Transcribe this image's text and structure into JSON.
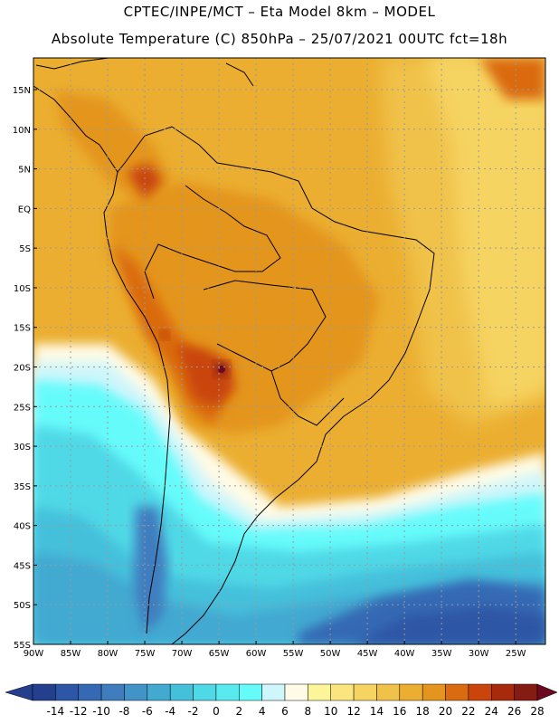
{
  "title": {
    "line1": "CPTEC/INPE/MCT –  Eta Model 8km – MODEL",
    "line2": "Absolute Temperature (C) 850hPa – 25/07/2021 00UTC fct=18h"
  },
  "map": {
    "lat_labels": [
      "15N",
      "10N",
      "5N",
      "EQ",
      "5S",
      "10S",
      "15S",
      "20S",
      "25S",
      "30S",
      "35S",
      "40S",
      "45S",
      "50S",
      "55S"
    ],
    "lon_labels": [
      "90W",
      "85W",
      "80W",
      "75W",
      "70W",
      "65W",
      "60W",
      "55W",
      "50W",
      "45W",
      "40W",
      "35W",
      "30W",
      "25W"
    ],
    "lat_range": [
      -55,
      19
    ],
    "lon_range": [
      -90,
      -21
    ]
  },
  "colorbar": {
    "labels": [
      "-14",
      "-12",
      "-10",
      "-8",
      "-6",
      "-4",
      "-2",
      "0",
      "2",
      "4",
      "6",
      "8",
      "10",
      "12",
      "14",
      "16",
      "18",
      "20",
      "22",
      "24",
      "26",
      "28"
    ],
    "colors": [
      "#233f8e",
      "#2d56a6",
      "#3669b4",
      "#3f7dbf",
      "#4193c8",
      "#42a9d1",
      "#45c0db",
      "#4fd8e6",
      "#58eaee",
      "#66fbfb",
      "#cff6fb",
      "#fffbe6",
      "#fdf59a",
      "#fae57e",
      "#f6d462",
      "#f0c24a",
      "#ebae30",
      "#e4951f",
      "#da6b10",
      "#c9450c",
      "#a82a0d",
      "#861b14",
      "#6a0a1e"
    ],
    "min_arrow_color": "#233f8e",
    "max_arrow_color": "#6a0a1e"
  }
}
